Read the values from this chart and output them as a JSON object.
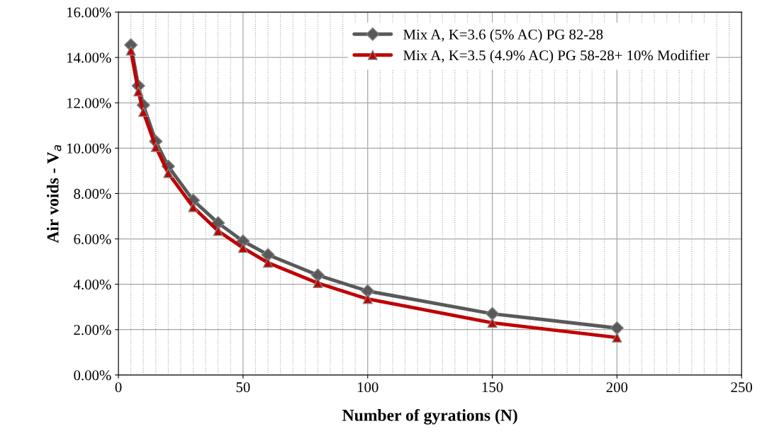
{
  "chart_data": {
    "type": "line",
    "xlabel": "Number of gyrations (N)",
    "ylabel": "Air voids - V$_{a}$",
    "x": [
      5,
      8,
      10,
      15,
      20,
      30,
      40,
      50,
      60,
      80,
      100,
      150,
      200
    ],
    "series": [
      {
        "name": "Mix A, K=3.6 (5% AC) PG 82-28",
        "color": "#595959",
        "marker": "diamond",
        "values": [
          14.55,
          12.75,
          11.9,
          10.3,
          9.2,
          7.7,
          6.7,
          5.9,
          5.3,
          4.4,
          3.7,
          2.7,
          2.07
        ]
      },
      {
        "name": "Mix A, K=3.5 (4.9% AC) PG 58-28+ 10% Modifier",
        "color": "#c00000",
        "marker": "triangle",
        "values": [
          14.3,
          12.5,
          11.6,
          10.05,
          8.9,
          7.4,
          6.35,
          5.6,
          4.95,
          4.05,
          3.35,
          2.3,
          1.65
        ]
      }
    ],
    "xlim": [
      0,
      250
    ],
    "xticks": [
      0,
      50,
      100,
      150,
      200,
      250
    ],
    "ylim": [
      0,
      16
    ],
    "yticks": [
      {
        "value": 0,
        "label": "0.00%"
      },
      {
        "value": 2,
        "label": "2.00%"
      },
      {
        "value": 4,
        "label": "4.00%"
      },
      {
        "value": 6,
        "label": "6.00%"
      },
      {
        "value": 8,
        "label": "8.00%"
      },
      {
        "value": 10,
        "label": "10.00%"
      },
      {
        "value": 12,
        "label": "12.00%"
      },
      {
        "value": 14,
        "label": "14.00%"
      },
      {
        "value": 16,
        "label": "16.00%"
      }
    ],
    "grid": true,
    "legend": "top right",
    "line_style": "solid"
  }
}
